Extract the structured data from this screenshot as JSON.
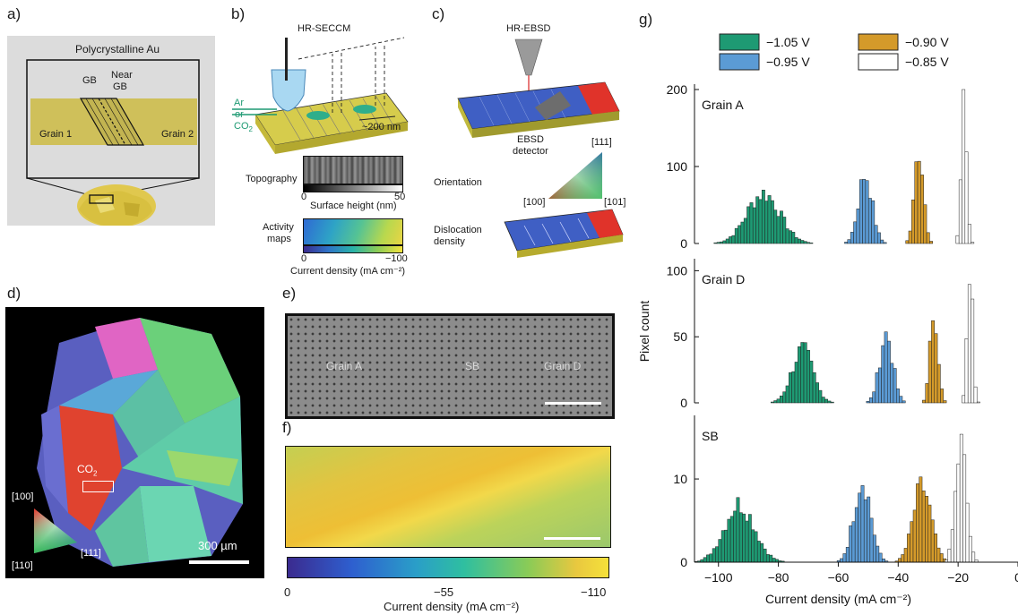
{
  "panels": {
    "a": {
      "label": "a)",
      "title": "Polycrystalline Au",
      "gb": "GB",
      "near_gb_1": "Near",
      "near_gb_2": "GB",
      "grain1": "Grain 1",
      "grain2": "Grain 2"
    },
    "b": {
      "label": "b)",
      "title": "HR-SECCM",
      "gas_1": "Ar",
      "gas_2": "or",
      "gas_3": "CO",
      "gas_3_sub": "2",
      "scale": "~200 nm",
      "topography": "Topography",
      "topo_min": "0",
      "topo_max": "50",
      "topo_axis": "Surface height (nm)",
      "activity_1": "Activity",
      "activity_2": "maps",
      "act_min": "0",
      "act_max": "−100",
      "act_axis": "Current density (mA cm⁻²)"
    },
    "c": {
      "label": "c)",
      "title": "HR-EBSD",
      "detector_1": "EBSD",
      "detector_2": "detector",
      "orientation": "Orientation",
      "dislocation_1": "Dislocation",
      "dislocation_2": "density",
      "m111": "[111]",
      "m100": "[100]",
      "m101": "[101]"
    },
    "d": {
      "label": "d)",
      "co2": "CO",
      "co2_sub": "2",
      "m100": "[100]",
      "m110": "[110]",
      "m111": "[111]",
      "scale": "300 µm"
    },
    "e": {
      "label": "e)",
      "grain_a": "Grain A",
      "sb": "SB",
      "grain_d": "Grain D"
    },
    "f": {
      "label": "f)",
      "cb_min": "0",
      "cb_mid": "−55",
      "cb_max": "−110",
      "cb_axis": "Current density (mA cm⁻²)"
    },
    "g": {
      "label": "g)"
    }
  },
  "chart_data": {
    "type": "histogram",
    "xlabel": "Current density (mA cm⁻²)",
    "ylabel": "Pixel count",
    "xlim": [
      -108,
      0
    ],
    "xticks": [
      -100,
      -80,
      -60,
      -40,
      -20,
      0
    ],
    "xtick_labels": [
      "−100",
      "−80",
      "−60",
      "−40",
      "−20",
      "0"
    ],
    "legend": [
      {
        "name": "−1.05 V",
        "color": "#1e9a73"
      },
      {
        "name": "−0.90 V",
        "color": "#d49a2a"
      },
      {
        "name": "−0.95 V",
        "color": "#5b9bd5"
      },
      {
        "name": "−0.85 V",
        "color": "#ffffff"
      }
    ],
    "panels": [
      {
        "name": "Grain A",
        "ylim": [
          0,
          200
        ],
        "yticks": [
          0,
          100,
          200
        ],
        "series": [
          {
            "color": "#1e9a73",
            "center": -85,
            "width": 5.5,
            "peak": 65
          },
          {
            "color": "#5b9bd5",
            "center": -51,
            "width": 2.3,
            "peak": 90
          },
          {
            "color": "#d49a2a",
            "center": -33,
            "width": 1.5,
            "peak": 125
          },
          {
            "color": "#ffffff",
            "center": -18,
            "width": 0.9,
            "peak": 190
          }
        ]
      },
      {
        "name": "Grain D",
        "ylim": [
          0,
          105
        ],
        "yticks": [
          0,
          50,
          100
        ],
        "series": [
          {
            "color": "#1e9a73",
            "center": -72,
            "width": 3.5,
            "peak": 40
          },
          {
            "color": "#5b9bd5",
            "center": -44,
            "width": 2.2,
            "peak": 52
          },
          {
            "color": "#d49a2a",
            "center": -28,
            "width": 1.3,
            "peak": 72
          },
          {
            "color": "#ffffff",
            "center": -16,
            "width": 0.9,
            "peak": 103
          }
        ]
      },
      {
        "name": "SB",
        "ylim": [
          0,
          17
        ],
        "yticks": [
          0,
          10
        ],
        "series": [
          {
            "color": "#1e9a73",
            "center": -93,
            "width": 5,
            "peak": 7
          },
          {
            "color": "#5b9bd5",
            "center": -52,
            "width": 2.8,
            "peak": 10
          },
          {
            "color": "#d49a2a",
            "center": -32,
            "width": 3,
            "peak": 9
          },
          {
            "color": "#ffffff",
            "center": -19,
            "width": 1.8,
            "peak": 14
          }
        ]
      }
    ]
  }
}
